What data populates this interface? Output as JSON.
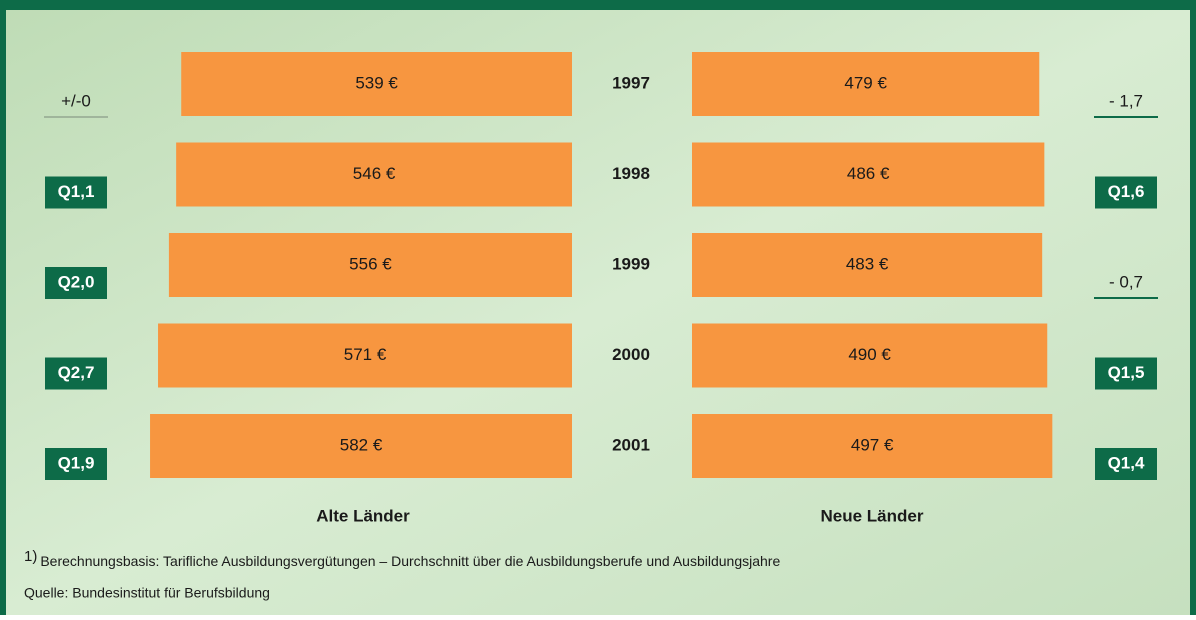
{
  "chart_data": {
    "type": "butterfly",
    "categories": [
      "1997",
      "1998",
      "1999",
      "2000",
      "2001"
    ],
    "xlim": [
      0,
      600
    ],
    "series": [
      {
        "name": "Alte Länder",
        "color": "#f79640",
        "values": [
          539,
          546,
          556,
          571,
          582
        ],
        "value_labels": [
          "539 €",
          "546 €",
          "556 €",
          "571 €",
          "582 €"
        ],
        "change_labels": [
          "+/-0",
          "Q1,1",
          "Q2,0",
          "Q2,7",
          "Q1,9"
        ]
      },
      {
        "name": "Neue Länder",
        "color": "#f79640",
        "values": [
          479,
          486,
          483,
          490,
          497
        ],
        "value_labels": [
          "479 €",
          "486 €",
          "483 €",
          "490 €",
          "497 €"
        ],
        "change_labels": [
          "- 1,7",
          "Q1,6",
          "- 0,7",
          "Q1,5",
          "Q1,4"
        ]
      }
    ],
    "footnote_marker": "1)",
    "footnote": "Berechnungsbasis: Tarifliche Ausbildungsvergütungen – Durchschnitt über die Ausbildungsberufe und Ausbildungsjahre",
    "source": "Quelle: Bundesinstitut für Berufsbildung"
  }
}
